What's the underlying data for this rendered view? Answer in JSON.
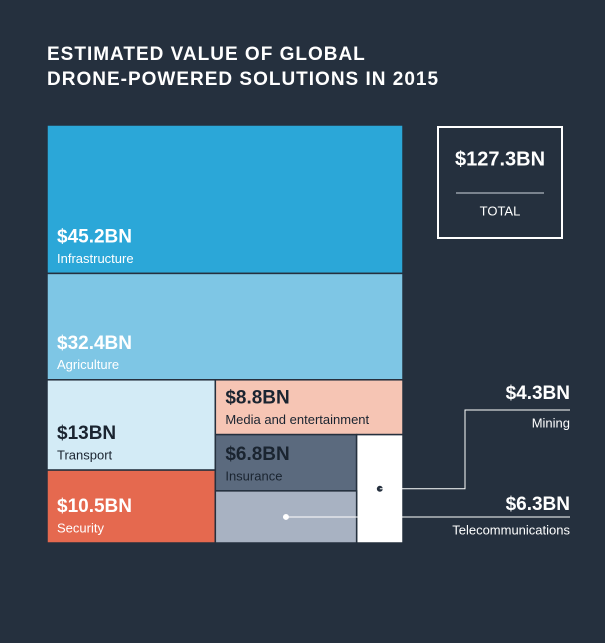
{
  "chart_data": {
    "type": "treemap",
    "title": "ESTIMATED VALUE OF GLOBAL",
    "title_line2": "DRONE-POWERED SOLUTIONS IN 2015",
    "categories": [
      "Infrastructure",
      "Agriculture",
      "Transport",
      "Security",
      "Media and entertainment",
      "Insurance",
      "Mining",
      "Telecommunications"
    ],
    "values": [
      45.2,
      32.4,
      13,
      10.5,
      8.8,
      6.8,
      4.3,
      6.3
    ],
    "value_labels": [
      "$45.2BN",
      "$32.4BN",
      "$13BN",
      "$10.5BN",
      "$8.8BN",
      "$6.8BN",
      "$4.3BN",
      "$6.3BN"
    ],
    "colors": [
      "#2ba7d8",
      "#7ec6e5",
      "#d3ebf6",
      "#e5694f",
      "#f6c5b4",
      "#5b6a7e",
      "#ffffff",
      "#a8b2c2"
    ],
    "total": 127.3,
    "total_label": "$127.3BN",
    "total_caption": "TOTAL"
  }
}
